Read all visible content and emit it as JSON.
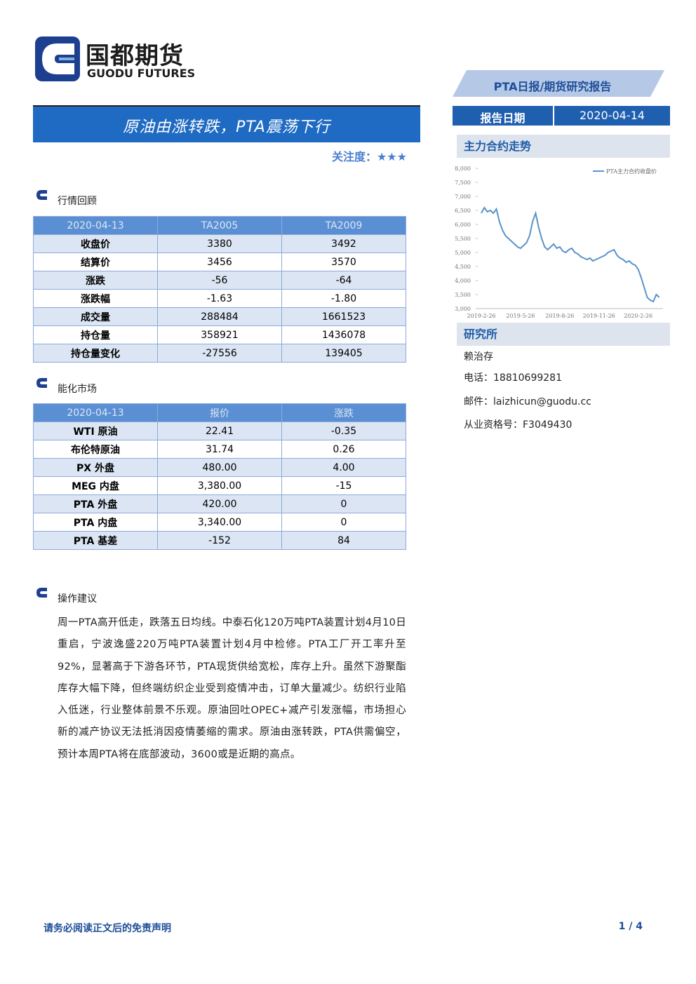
{
  "header": {
    "company": "国都期货",
    "company_en": "GUODU FUTURES",
    "report_type": "PTA日报/期货研究报告",
    "date_label": "报告日期",
    "date": "2020-04-14"
  },
  "title": "原油由涨转跌，PTA震荡下行",
  "attention": "关注度：★★★",
  "market_review": {
    "title": "行情回顾",
    "header": [
      "2020-04-13",
      "TA2005",
      "TA2009"
    ],
    "rows": [
      [
        "收盘价",
        "3380",
        "3492"
      ],
      [
        "结算价",
        "3456",
        "3570"
      ],
      [
        "涨跌",
        "-56",
        "-64"
      ],
      [
        "涨跌幅",
        "-1.63",
        "-1.80"
      ],
      [
        "成交量",
        "288484",
        "1661523"
      ],
      [
        "持仓量",
        "358921",
        "1436078"
      ],
      [
        "持仓量变化",
        "-27556",
        "139405"
      ]
    ]
  },
  "energy_market": {
    "title": "能化市场",
    "header": [
      "2020-04-13",
      "报价",
      "涨跌"
    ],
    "rows": [
      [
        "WTI 原油",
        "22.41",
        "-0.35"
      ],
      [
        "布伦特原油",
        "31.74",
        "0.26"
      ],
      [
        "PX 外盘",
        "480.00",
        "4.00"
      ],
      [
        "MEG 内盘",
        "3,380.00",
        "-15"
      ],
      [
        "PTA 外盘",
        "420.00",
        "0"
      ],
      [
        "PTA 内盘",
        "3,340.00",
        "0"
      ],
      [
        "PTA 基差",
        "-152",
        "84"
      ]
    ]
  },
  "advice": {
    "title": "操作建议",
    "text": "周一PTA高开低走，跌落五日均线。中泰石化120万吨PTA装置计划4月10日重启，宁波逸盛220万吨PTA装置计划4月中检修。PTA工厂开工率升至92%，显著高于下游各环节，PTA现货供给宽松，库存上升。虽然下游聚酯库存大幅下降，但终端纺织企业受到疫情冲击，订单大量减少。纺织行业陷入低迷，行业整体前景不乐观。原油回吐OPEC+减产引发涨幅，市场担心新的减产协议无法抵消因疫情萎缩的需求。原油由涨转跌，PTA供需偏空，预计本周PTA将在底部波动，3600或是近期的高点。"
  },
  "sidebar": {
    "chart_title": "主力合约走势",
    "research_title": "研究所",
    "analyst": "赖治存",
    "phone": "电话：18810699281",
    "email": "邮件：laizhicun@guodu.cc",
    "license": "从业资格号：F3049430"
  },
  "chart_data": {
    "type": "line",
    "categories": [
      "2019-2-26",
      null,
      null,
      null,
      null,
      null,
      null,
      null,
      null,
      null,
      null,
      null,
      null,
      "2019-5-26",
      null,
      null,
      null,
      null,
      null,
      null,
      null,
      null,
      null,
      null,
      null,
      null,
      "2019-8-26",
      null,
      null,
      null,
      null,
      null,
      null,
      null,
      null,
      null,
      null,
      null,
      null,
      "2019-11-26",
      null,
      null,
      null,
      null,
      null,
      null,
      null,
      null,
      null,
      null,
      null,
      null,
      "2020-2-26",
      null,
      null,
      null,
      null,
      null,
      null,
      null
    ],
    "series": [
      {
        "name": "PTA主力合约收盘价",
        "color": "#5b93c9",
        "values": [
          6400,
          6600,
          6450,
          6500,
          6400,
          6550,
          6100,
          5800,
          5600,
          5500,
          5400,
          5300,
          5200,
          5150,
          5250,
          5350,
          5600,
          6100,
          6400,
          5900,
          5500,
          5200,
          5100,
          5200,
          5300,
          5150,
          5200,
          5050,
          5000,
          5100,
          5150,
          5000,
          4950,
          4850,
          4800,
          4750,
          4800,
          4700,
          4750,
          4800,
          4850,
          4900,
          5000,
          5050,
          5100,
          4900,
          4800,
          4750,
          4650,
          4700,
          4600,
          4550,
          4400,
          4100,
          3750,
          3400,
          3300,
          3250,
          3500,
          3400
        ]
      }
    ],
    "ylim": [
      3000,
      8000
    ],
    "yticks": [
      {
        "value": 3000,
        "label": "3,000"
      },
      {
        "value": 3500,
        "label": "3,500"
      },
      {
        "value": 4000,
        "label": "4,000"
      },
      {
        "value": 4500,
        "label": "4,500"
      },
      {
        "value": 5000,
        "label": "5,000"
      },
      {
        "value": 5500,
        "label": "5,500"
      },
      {
        "value": 6000,
        "label": "6,000"
      },
      {
        "value": 6500,
        "label": "6,500"
      },
      {
        "value": 7000,
        "label": "7,000"
      },
      {
        "value": 7500,
        "label": "7,500"
      },
      {
        "value": 8000,
        "label": "8,000"
      }
    ],
    "grid": false
  },
  "footer": {
    "disclaimer": "请务必阅读正文后的免责声明",
    "page": "1 / 4"
  }
}
